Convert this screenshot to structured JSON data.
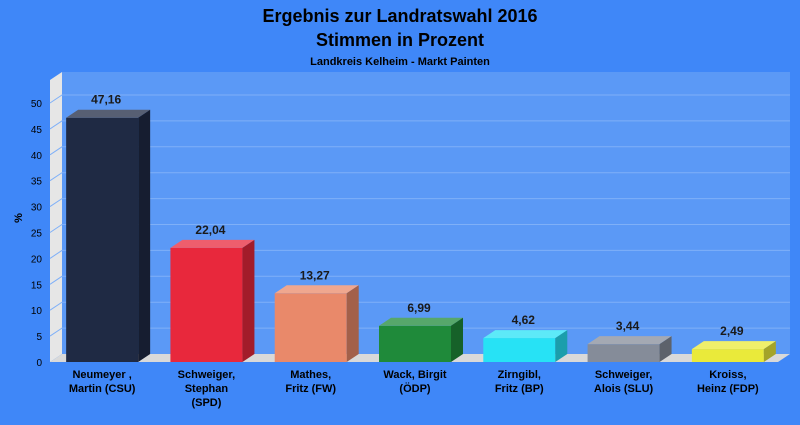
{
  "chart_data": {
    "type": "bar",
    "title": "Ergebnis zur Landratswahl 2016",
    "subtitle": "Stimmen in Prozent",
    "subsubtitle": "Landkreis Kelheim - Markt Painten",
    "ylabel": "%",
    "xlabel": "",
    "ylim": [
      0,
      50
    ],
    "yticks": [
      0,
      5,
      10,
      15,
      20,
      25,
      30,
      35,
      40,
      45,
      50
    ],
    "grid": true,
    "legend": "none",
    "categories": [
      [
        "Neumeyer ,",
        "Martin (CSU)"
      ],
      [
        "Schweiger,",
        "Stephan",
        "(SPD)"
      ],
      [
        "Mathes,",
        "Fritz (FW)"
      ],
      [
        "Wack, Birgit",
        "(ÖDP)"
      ],
      [
        "Zirngibl,",
        "Fritz (BP)"
      ],
      [
        "Schweiger,",
        "Alois (SLU)"
      ],
      [
        "Kroiss,",
        "Heinz (FDP)"
      ]
    ],
    "values": [
      47.16,
      22.04,
      13.27,
      6.99,
      4.62,
      3.44,
      2.49
    ],
    "value_labels": [
      "47,16",
      "22,04",
      "13,27",
      "6,99",
      "4,62",
      "3,44",
      "2,49"
    ],
    "colors": [
      "#1f2a44",
      "#e8283c",
      "#e9896a",
      "#1f8a3a",
      "#27e2f5",
      "#858c99",
      "#eaea3a"
    ]
  },
  "colors": {
    "background": "#3f87f8",
    "plot_area": "#5b99f6",
    "gridline": "#7fb0f8",
    "floor": "#d9d9d9",
    "wall_side": "#e6e6e6"
  }
}
